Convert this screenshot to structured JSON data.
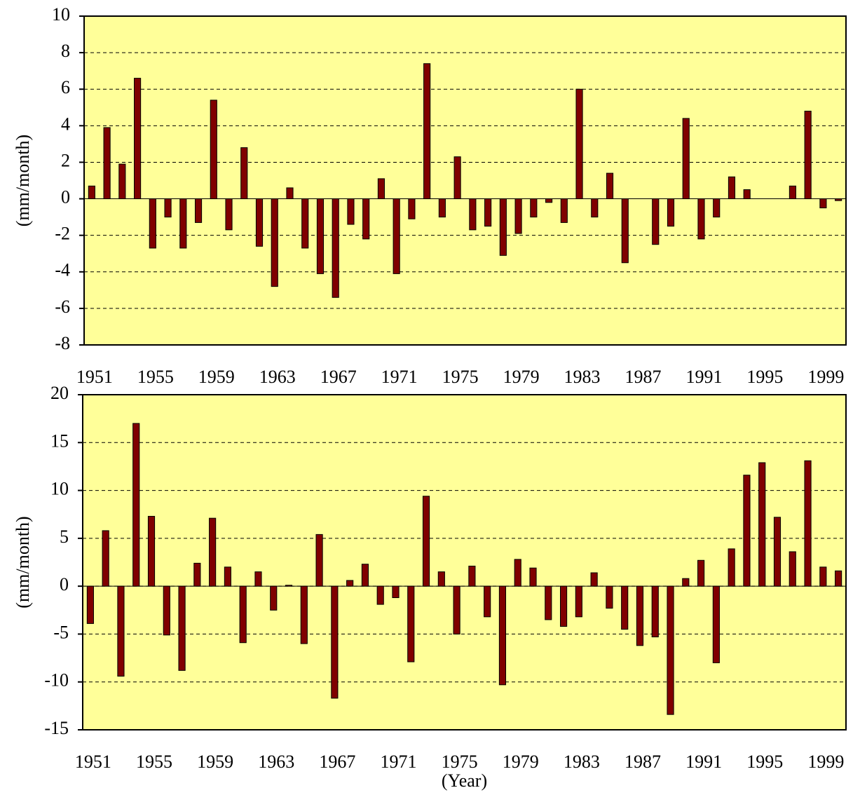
{
  "chart_data": [
    {
      "type": "bar",
      "categories": [
        "1951",
        null,
        null,
        null,
        "1955",
        null,
        null,
        null,
        "1959",
        null,
        null,
        null,
        "1963",
        null,
        null,
        null,
        "1967",
        null,
        null,
        null,
        "1971",
        null,
        null,
        null,
        "1975",
        null,
        null,
        null,
        "1979",
        null,
        null,
        null,
        "1983",
        null,
        null,
        null,
        "1987",
        null,
        null,
        null,
        "1991",
        null,
        null,
        null,
        "1995",
        null,
        null,
        null,
        "1999",
        null
      ],
      "values": [
        0.7,
        3.9,
        1.9,
        6.6,
        -2.7,
        -1.0,
        -2.7,
        -1.3,
        5.4,
        -1.7,
        2.8,
        -2.6,
        -4.8,
        0.6,
        -2.7,
        -4.1,
        -5.4,
        -1.4,
        -2.2,
        1.1,
        -4.1,
        -1.1,
        7.4,
        -1.0,
        2.3,
        -1.7,
        -1.5,
        -3.1,
        -1.9,
        -1.0,
        -0.2,
        -1.3,
        6.0,
        -1.0,
        1.4,
        -3.5,
        0,
        -2.5,
        -1.5,
        4.4,
        -2.2,
        -1.0,
        1.2,
        0.5,
        0,
        0,
        0.7,
        4.8,
        -0.5,
        -0.1
      ],
      "color": "#800000",
      "ylim": [
        -8,
        10
      ],
      "yticks": [
        -8,
        -6,
        -4,
        -2,
        0,
        2,
        4,
        6,
        8,
        10
      ],
      "grid": true,
      "y_label": "(mm/month)"
    },
    {
      "type": "bar",
      "categories": [
        "1951",
        null,
        null,
        null,
        "1955",
        null,
        null,
        null,
        "1959",
        null,
        null,
        null,
        "1963",
        null,
        null,
        null,
        "1967",
        null,
        null,
        null,
        "1971",
        null,
        null,
        null,
        "1975",
        null,
        null,
        null,
        "1979",
        null,
        null,
        null,
        "1983",
        null,
        null,
        null,
        "1987",
        null,
        null,
        null,
        "1991",
        null,
        null,
        null,
        "1995",
        null,
        null,
        null,
        "1999",
        null
      ],
      "values": [
        -3.9,
        5.8,
        -9.4,
        17.0,
        7.3,
        -5.1,
        -8.8,
        2.4,
        7.1,
        2.0,
        -5.9,
        1.5,
        -2.5,
        0.1,
        -6.0,
        5.4,
        -11.7,
        0.6,
        2.3,
        -1.9,
        -1.2,
        -7.9,
        9.4,
        1.5,
        -5.0,
        2.1,
        -3.2,
        -10.3,
        2.8,
        1.9,
        -3.5,
        -4.2,
        -3.2,
        1.4,
        -2.3,
        -4.5,
        -6.2,
        -5.3,
        -13.4,
        0.8,
        2.7,
        -8.0,
        3.9,
        11.6,
        12.9,
        7.2,
        3.6,
        13.1,
        2.0,
        1.6
      ],
      "color": "#800000",
      "ylim": [
        -15,
        20
      ],
      "yticks": [
        -15,
        -10,
        -5,
        0,
        5,
        10,
        15,
        20
      ],
      "grid": true,
      "y_label": "(mm/month)",
      "x_label": "(Year)"
    }
  ]
}
